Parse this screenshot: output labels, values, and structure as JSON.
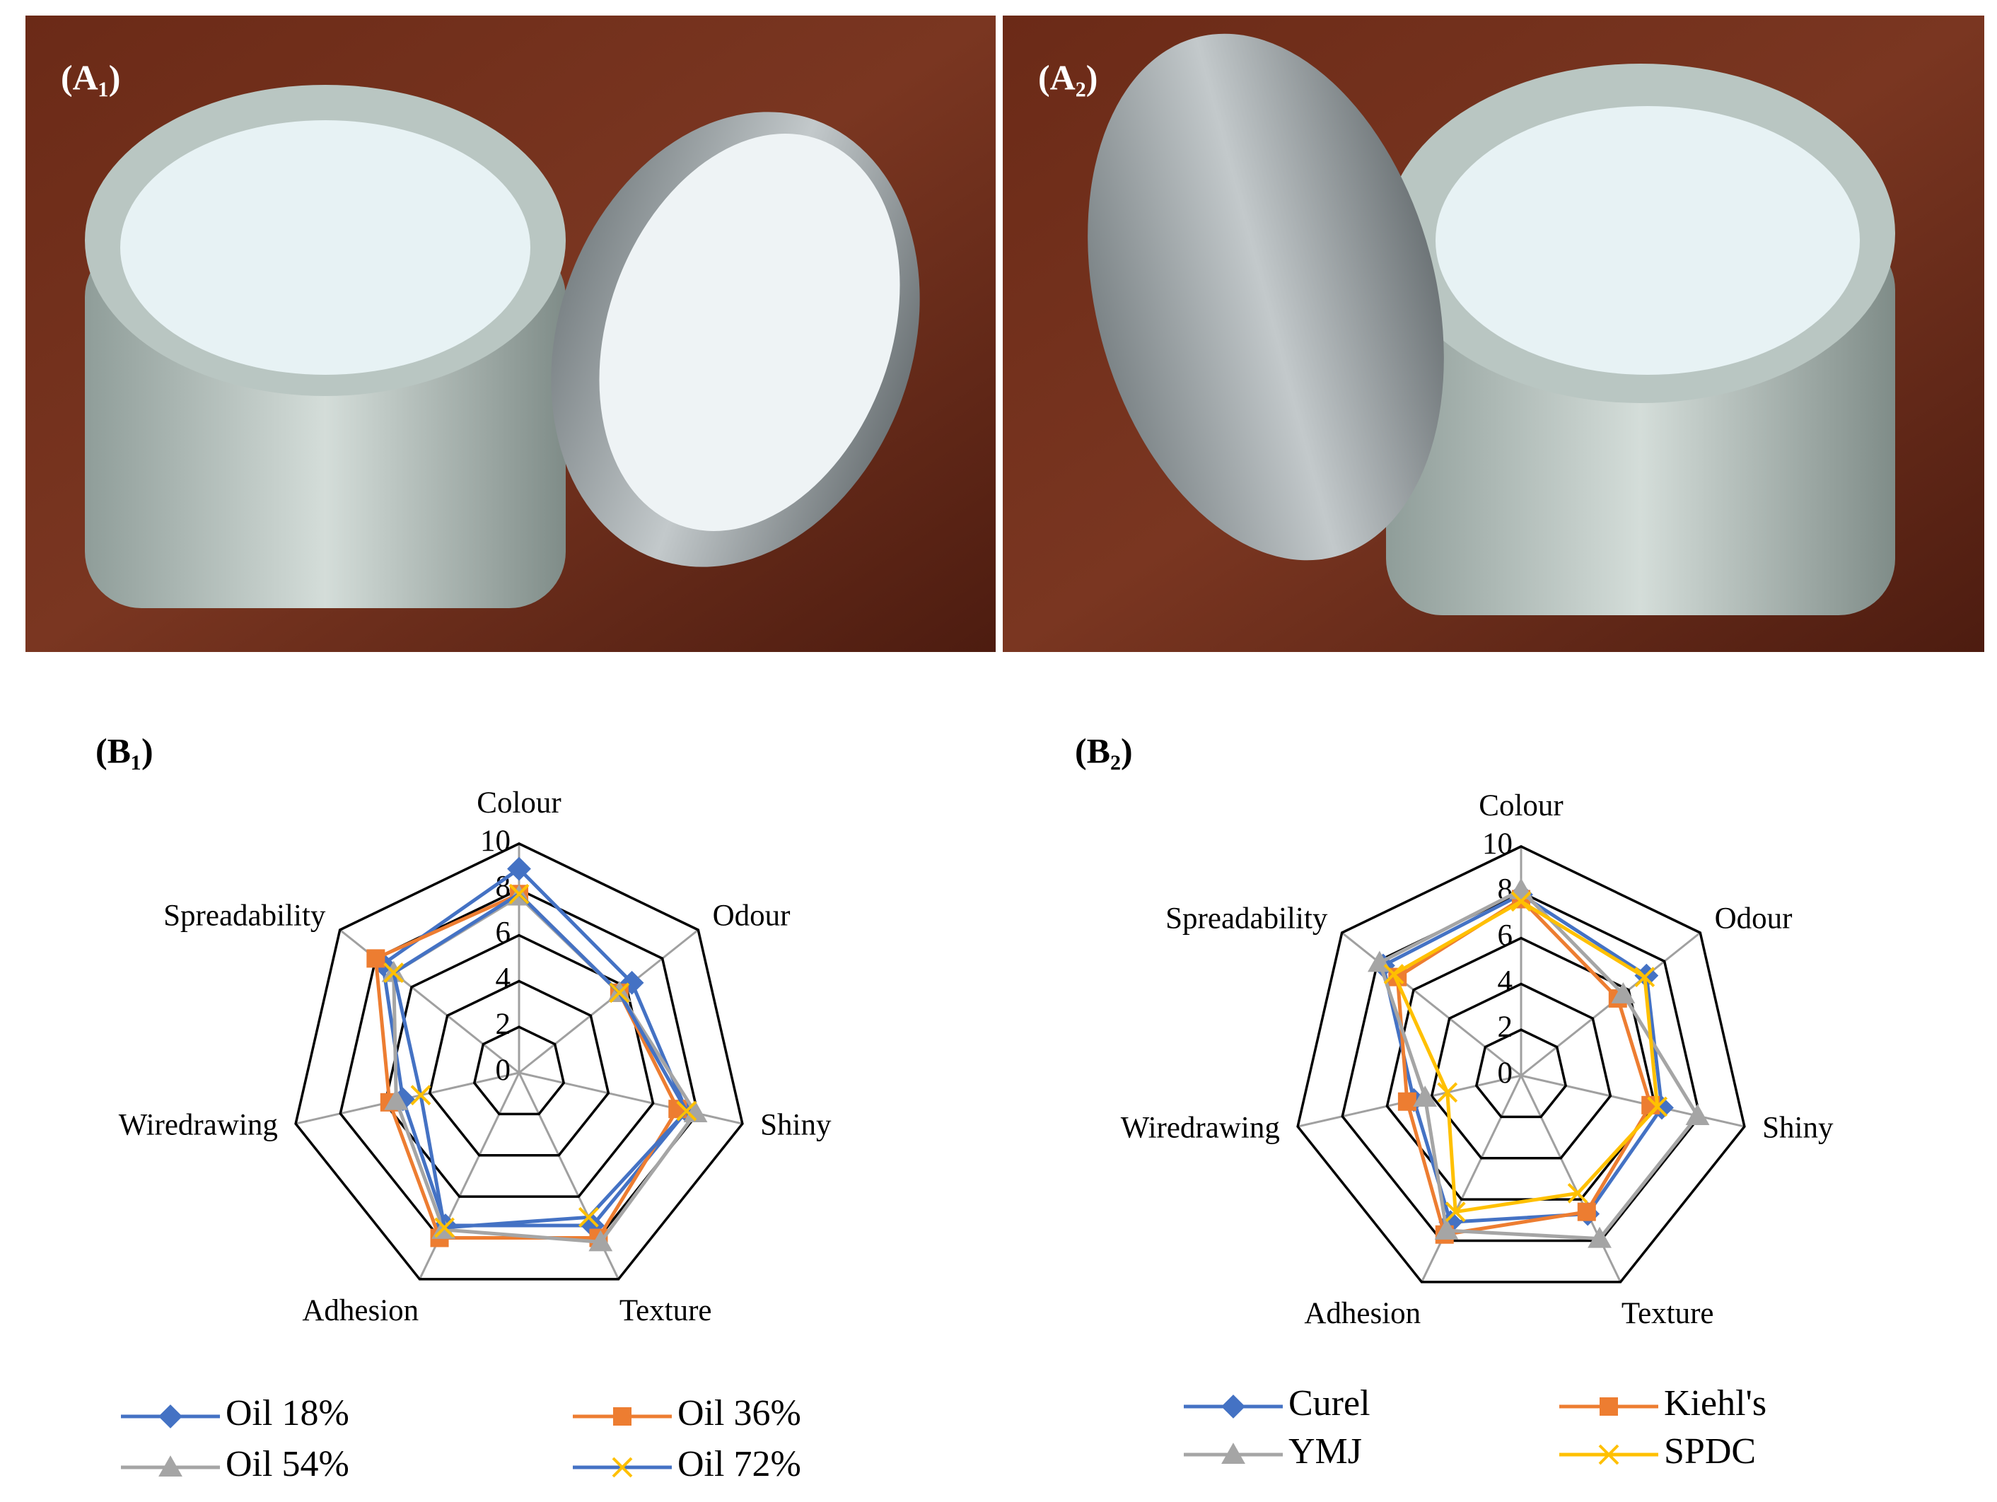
{
  "panels": [
    {
      "label": "(A₁)"
    },
    {
      "label": "(A₂)"
    }
  ],
  "chart_data": [
    {
      "type": "radar",
      "panel_label": "(B₁)",
      "categories": [
        "Colour",
        "Odour",
        "Shiny",
        "Texture",
        "Adhesion",
        "Wiredrawing",
        "Spreadability"
      ],
      "ylim": [
        0,
        10
      ],
      "yticks": [
        0,
        2,
        4,
        6,
        8,
        10
      ],
      "grid": true,
      "legend": "bottom",
      "series": [
        {
          "name": "Oil 18%",
          "color": "#4472c4",
          "marker": "diamond",
          "values": [
            8.9,
            6.3,
            7.5,
            7.4,
            7.4,
            5.2,
            7.6
          ]
        },
        {
          "name": "Oil 36%",
          "color": "#ed7d31",
          "marker": "square",
          "values": [
            7.8,
            5.6,
            7.1,
            8.0,
            8.0,
            5.8,
            8.0
          ]
        },
        {
          "name": "Oil 54%",
          "color": "#a5a5a5",
          "marker": "triangle",
          "values": [
            7.7,
            5.6,
            7.9,
            8.2,
            7.6,
            5.5,
            7.0
          ]
        },
        {
          "name": "Oil 72%",
          "color": "#4472c4",
          "marker": "x",
          "marker_color": "#ffc000",
          "values": [
            7.8,
            5.6,
            7.5,
            7.0,
            7.5,
            4.4,
            7.0
          ]
        }
      ]
    },
    {
      "type": "radar",
      "panel_label": "(B₂)",
      "categories": [
        "Colour",
        "Odour",
        "Shiny",
        "Texture",
        "Adhesion",
        "Wiredrawing",
        "Spreadability"
      ],
      "ylim": [
        0,
        10
      ],
      "yticks": [
        0,
        2,
        4,
        6,
        8,
        10
      ],
      "grid": true,
      "legend": "bottom",
      "series": [
        {
          "name": "Curel",
          "color": "#4472c4",
          "marker": "diamond",
          "values": [
            7.9,
            7.0,
            6.3,
            6.7,
            7.1,
            4.8,
            7.7
          ]
        },
        {
          "name": "Kiehl's",
          "color": "#ed7d31",
          "marker": "square",
          "values": [
            7.7,
            5.4,
            5.8,
            6.6,
            7.7,
            5.1,
            6.9
          ]
        },
        {
          "name": "YMJ",
          "color": "#a5a5a5",
          "marker": "triangle",
          "values": [
            8.1,
            5.7,
            7.9,
            7.9,
            7.5,
            4.3,
            7.9
          ]
        },
        {
          "name": "SPDC",
          "color": "#ffc000",
          "marker": "x",
          "values": [
            7.6,
            6.9,
            6.1,
            5.7,
            6.6,
            3.3,
            7.1
          ]
        }
      ]
    }
  ]
}
